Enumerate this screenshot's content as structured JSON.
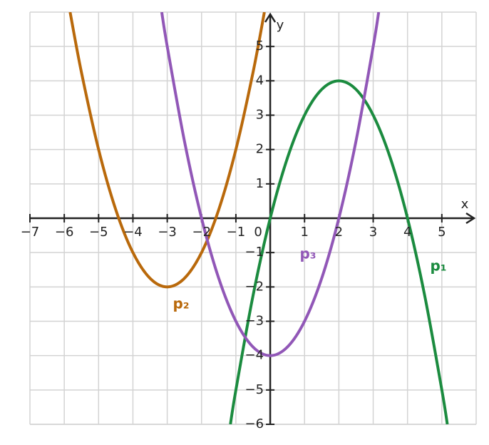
{
  "chart_data": {
    "type": "function-plot",
    "x_label": "x",
    "y_label": "y",
    "xlim": [
      -7,
      6
    ],
    "ylim": [
      -6,
      6
    ],
    "xticks": [
      {
        "value": -7,
        "label": "−7"
      },
      {
        "value": -6,
        "label": "−6"
      },
      {
        "value": -5,
        "label": "−5"
      },
      {
        "value": -4,
        "label": "−4"
      },
      {
        "value": -3,
        "label": "−3"
      },
      {
        "value": -2,
        "label": "−2"
      },
      {
        "value": -1,
        "label": "−1"
      },
      0,
      1,
      2,
      3,
      4,
      5
    ],
    "yticks": [
      {
        "value": -6,
        "label": "−6"
      },
      {
        "value": -5,
        "label": "−5"
      },
      {
        "value": -4,
        "label": "−4"
      },
      {
        "value": -3,
        "label": "−3"
      },
      {
        "value": -2,
        "label": "−2"
      },
      {
        "value": -1,
        "label": "−1"
      },
      1,
      2,
      3,
      4,
      5
    ],
    "grid": true,
    "series": [
      {
        "name": "p₁",
        "color": "#1b8b3f",
        "x": [
          -1.16,
          -1,
          -0.5,
          0,
          0.5,
          1,
          1.5,
          2,
          2.5,
          3,
          3.5,
          4,
          4.5,
          5,
          5.16
        ],
        "values": [
          -6,
          -5,
          -2.25,
          0,
          1.75,
          3,
          3.75,
          4,
          3.75,
          3,
          1.75,
          0,
          -2.25,
          -5,
          -6
        ]
      },
      {
        "name": "p₂",
        "color": "#b9690b",
        "x": [
          -5.83,
          -5.5,
          -5,
          -4.5,
          -4,
          -3.5,
          -3,
          -2.5,
          -2,
          -1.5,
          -1,
          -0.5,
          -0.17
        ],
        "values": [
          6,
          4.25,
          2,
          0.25,
          -1,
          -1.75,
          -2,
          -1.75,
          -1,
          0.25,
          2,
          4.25,
          6
        ]
      },
      {
        "name": "p₃",
        "color": "#9157b7",
        "x": [
          -3.16,
          -3,
          -2.5,
          -2,
          -1.5,
          -1,
          -0.5,
          0,
          0.5,
          1,
          1.5,
          2,
          2.5,
          3,
          3.16
        ],
        "values": [
          6,
          5,
          2.25,
          0,
          -1.75,
          -3,
          -3.75,
          -4,
          -3.75,
          -3,
          -1.75,
          0,
          2.25,
          5,
          6
        ]
      }
    ]
  }
}
